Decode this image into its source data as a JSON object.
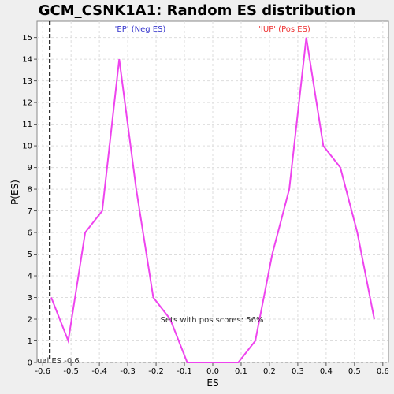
{
  "chart_data": {
    "type": "line",
    "title": "GCM_CSNK1A1: Random ES distribution",
    "xlabel": "ES",
    "ylabel": "P(ES)",
    "xlim": [
      -0.62,
      0.62
    ],
    "ylim": [
      0,
      15.75
    ],
    "x_ticks": [
      -0.6,
      -0.5,
      -0.4,
      -0.3,
      -0.2,
      -0.1,
      0.0,
      0.1,
      0.2,
      0.3,
      0.4,
      0.5,
      0.6
    ],
    "x_tick_labels": [
      "-0.6",
      "-0.5",
      "-0.4",
      "-0.3",
      "-0.2",
      "-0.1",
      "0.0",
      "0.1",
      "0.2",
      "0.3",
      "0.4",
      "0.5",
      "0.6"
    ],
    "y_ticks": [
      0,
      1,
      2,
      3,
      4,
      5,
      6,
      7,
      8,
      9,
      10,
      11,
      12,
      13,
      14,
      15
    ],
    "y_tick_labels": [
      "0",
      "1",
      "2",
      "3",
      "4",
      "5",
      "6",
      "7",
      "8",
      "9",
      "10",
      "11",
      "12",
      "13",
      "14",
      "15"
    ],
    "grid": true,
    "series": [
      {
        "color": "#ee44ee",
        "x": [
          -0.57,
          -0.51,
          -0.45,
          -0.39,
          -0.33,
          -0.27,
          -0.21,
          -0.15,
          -0.09,
          -0.03,
          0.03,
          0.09,
          0.15,
          0.21,
          0.27,
          0.33,
          0.39,
          0.45,
          0.51,
          0.57
        ],
        "y": [
          3,
          1,
          6,
          7,
          14,
          8,
          3,
          2,
          0,
          0,
          0,
          0,
          1,
          5,
          8,
          15,
          10,
          9,
          6,
          2
        ]
      }
    ],
    "vline": {
      "x": -0.575,
      "label": "ual ES -0.6",
      "color": "#000000"
    },
    "annotations": [
      {
        "text": "'EP' (Neg ES)",
        "color": "#3333cc"
      },
      {
        "text": "'IUP' (Pos ES)",
        "color": "#ee3333"
      },
      {
        "text": "Sets with pos scores: 56%",
        "color": "#333333"
      }
    ]
  }
}
